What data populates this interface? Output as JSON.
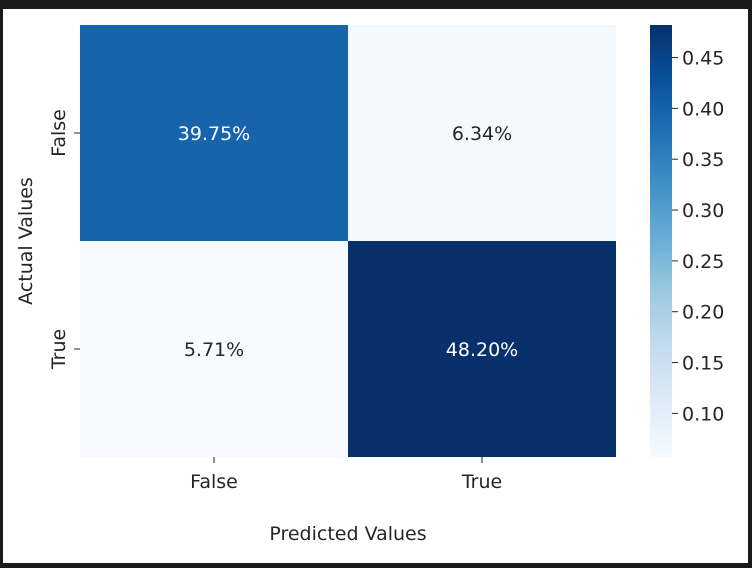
{
  "chart_data": {
    "type": "heatmap",
    "title": "",
    "xlabel": "Predicted Values",
    "ylabel": "Actual Values",
    "x_categories": [
      "False",
      "True"
    ],
    "y_categories": [
      "False",
      "True"
    ],
    "values": [
      [
        0.3975,
        0.0634
      ],
      [
        0.0571,
        0.482
      ]
    ],
    "cell_labels": [
      [
        "39.75%",
        "6.34%"
      ],
      [
        "5.71%",
        "48.20%"
      ]
    ],
    "colormap": "Blues",
    "colorbar": {
      "range": [
        0.0571,
        0.482
      ],
      "ticks": [
        0.1,
        0.15,
        0.2,
        0.25,
        0.3,
        0.35,
        0.4,
        0.45
      ],
      "tick_labels": [
        "0.10",
        "0.15",
        "0.20",
        "0.25",
        "0.30",
        "0.35",
        "0.40",
        "0.45"
      ]
    },
    "colors": {
      "low": "#f7fbff",
      "high": "#08306b"
    }
  }
}
